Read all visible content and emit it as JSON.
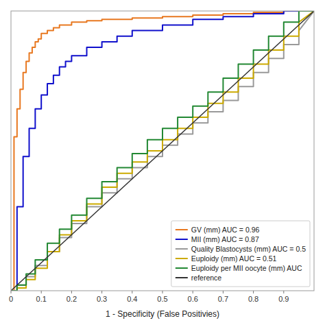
{
  "chart_data": {
    "type": "line",
    "xlabel": "1 - Specificity (False Positivies)",
    "xlim": [
      0,
      1.0
    ],
    "ylim": [
      0,
      1.0
    ],
    "xticks": [
      0,
      0.1,
      0.2,
      0.3,
      0.4,
      0.5,
      0.6,
      0.7,
      0.8,
      0.9
    ],
    "yticks": [],
    "tick_labels": "x",
    "grid": false,
    "legend": "lower right",
    "series": [
      {
        "name": "GV (mm) AUC = 0.96",
        "color": "#e87820",
        "x": [
          0.0,
          0.01,
          0.01,
          0.02,
          0.02,
          0.03,
          0.03,
          0.04,
          0.04,
          0.05,
          0.05,
          0.06,
          0.06,
          0.07,
          0.07,
          0.08,
          0.08,
          0.09,
          0.09,
          0.1,
          0.1,
          0.12,
          0.12,
          0.14,
          0.14,
          0.16,
          0.16,
          0.2,
          0.2,
          0.25,
          0.25,
          0.3,
          0.3,
          0.4,
          0.4,
          0.5,
          0.5,
          0.6,
          0.6,
          0.7,
          0.7,
          0.8,
          0.8,
          0.9,
          0.9,
          1.0
        ],
        "values": [
          0.0,
          0.0,
          0.55,
          0.55,
          0.65,
          0.65,
          0.72,
          0.72,
          0.78,
          0.78,
          0.82,
          0.82,
          0.85,
          0.85,
          0.87,
          0.87,
          0.89,
          0.89,
          0.9,
          0.9,
          0.92,
          0.92,
          0.93,
          0.93,
          0.94,
          0.94,
          0.95,
          0.95,
          0.96,
          0.96,
          0.965,
          0.965,
          0.97,
          0.97,
          0.975,
          0.975,
          0.98,
          0.98,
          0.985,
          0.985,
          0.99,
          0.99,
          0.995,
          0.995,
          1.0,
          1.0
        ]
      },
      {
        "name": "MII (mm) AUC = 0.87",
        "color": "#1010cc",
        "x": [
          0.0,
          0.02,
          0.02,
          0.04,
          0.04,
          0.06,
          0.06,
          0.08,
          0.08,
          0.1,
          0.1,
          0.12,
          0.12,
          0.14,
          0.14,
          0.16,
          0.16,
          0.18,
          0.18,
          0.2,
          0.2,
          0.25,
          0.25,
          0.3,
          0.3,
          0.35,
          0.35,
          0.4,
          0.4,
          0.5,
          0.5,
          0.6,
          0.6,
          0.7,
          0.7,
          0.8,
          0.8,
          0.9,
          0.9,
          1.0
        ],
        "values": [
          0.0,
          0.0,
          0.3,
          0.3,
          0.48,
          0.48,
          0.58,
          0.58,
          0.65,
          0.65,
          0.7,
          0.7,
          0.74,
          0.74,
          0.77,
          0.77,
          0.8,
          0.8,
          0.82,
          0.82,
          0.84,
          0.84,
          0.87,
          0.87,
          0.89,
          0.89,
          0.91,
          0.91,
          0.93,
          0.93,
          0.95,
          0.95,
          0.97,
          0.97,
          0.98,
          0.98,
          0.99,
          0.99,
          1.0,
          1.0
        ]
      },
      {
        "name": "Quality Blastocysts (mm) AUC = 0.5",
        "color": "#999999",
        "x": [
          0.0,
          0.02,
          0.02,
          0.05,
          0.05,
          0.08,
          0.08,
          0.12,
          0.12,
          0.16,
          0.16,
          0.2,
          0.2,
          0.25,
          0.25,
          0.3,
          0.3,
          0.35,
          0.35,
          0.4,
          0.4,
          0.45,
          0.45,
          0.5,
          0.5,
          0.55,
          0.55,
          0.6,
          0.6,
          0.65,
          0.65,
          0.7,
          0.7,
          0.75,
          0.75,
          0.8,
          0.8,
          0.85,
          0.85,
          0.9,
          0.9,
          0.95,
          0.95,
          1.0
        ],
        "values": [
          0.0,
          0.0,
          0.02,
          0.02,
          0.05,
          0.05,
          0.09,
          0.09,
          0.14,
          0.14,
          0.19,
          0.19,
          0.24,
          0.24,
          0.3,
          0.3,
          0.35,
          0.35,
          0.4,
          0.4,
          0.44,
          0.44,
          0.48,
          0.48,
          0.52,
          0.52,
          0.56,
          0.56,
          0.6,
          0.6,
          0.64,
          0.64,
          0.68,
          0.68,
          0.73,
          0.73,
          0.78,
          0.78,
          0.83,
          0.83,
          0.88,
          0.88,
          0.93,
          1.0
        ]
      },
      {
        "name": "Euploidy (mm) AUC = 0.51",
        "color": "#ccaa00",
        "x": [
          0.0,
          0.02,
          0.02,
          0.05,
          0.05,
          0.08,
          0.08,
          0.12,
          0.12,
          0.16,
          0.16,
          0.2,
          0.2,
          0.25,
          0.25,
          0.3,
          0.3,
          0.35,
          0.35,
          0.4,
          0.4,
          0.45,
          0.45,
          0.5,
          0.5,
          0.55,
          0.55,
          0.6,
          0.6,
          0.65,
          0.65,
          0.7,
          0.7,
          0.75,
          0.75,
          0.8,
          0.8,
          0.85,
          0.85,
          0.9,
          0.9,
          0.95,
          0.95,
          1.0
        ],
        "values": [
          0.0,
          0.0,
          0.01,
          0.01,
          0.04,
          0.04,
          0.08,
          0.08,
          0.14,
          0.14,
          0.2,
          0.2,
          0.25,
          0.25,
          0.31,
          0.31,
          0.37,
          0.37,
          0.42,
          0.42,
          0.46,
          0.46,
          0.5,
          0.5,
          0.54,
          0.54,
          0.58,
          0.58,
          0.62,
          0.62,
          0.67,
          0.67,
          0.71,
          0.71,
          0.76,
          0.76,
          0.81,
          0.81,
          0.86,
          0.86,
          0.91,
          0.91,
          0.96,
          1.0
        ]
      },
      {
        "name": "Euploidy per MII oocyte (mm) AUC",
        "color": "#228833",
        "x": [
          0.0,
          0.02,
          0.02,
          0.05,
          0.05,
          0.08,
          0.08,
          0.12,
          0.12,
          0.16,
          0.16,
          0.2,
          0.2,
          0.25,
          0.25,
          0.3,
          0.3,
          0.35,
          0.35,
          0.4,
          0.4,
          0.45,
          0.45,
          0.5,
          0.5,
          0.55,
          0.55,
          0.6,
          0.6,
          0.65,
          0.65,
          0.7,
          0.7,
          0.75,
          0.75,
          0.8,
          0.8,
          0.85,
          0.85,
          0.9,
          0.9,
          0.95,
          0.95,
          1.0
        ],
        "values": [
          0.0,
          0.0,
          0.02,
          0.02,
          0.06,
          0.06,
          0.11,
          0.11,
          0.17,
          0.17,
          0.22,
          0.22,
          0.27,
          0.27,
          0.33,
          0.33,
          0.39,
          0.39,
          0.44,
          0.44,
          0.49,
          0.49,
          0.54,
          0.54,
          0.58,
          0.58,
          0.62,
          0.62,
          0.66,
          0.66,
          0.71,
          0.71,
          0.76,
          0.76,
          0.81,
          0.81,
          0.86,
          0.86,
          0.91,
          0.91,
          0.96,
          0.96,
          1.0,
          1.0
        ]
      },
      {
        "name": "reference",
        "color": "#333333",
        "x": [
          0,
          1
        ],
        "values": [
          0,
          1
        ]
      }
    ]
  }
}
